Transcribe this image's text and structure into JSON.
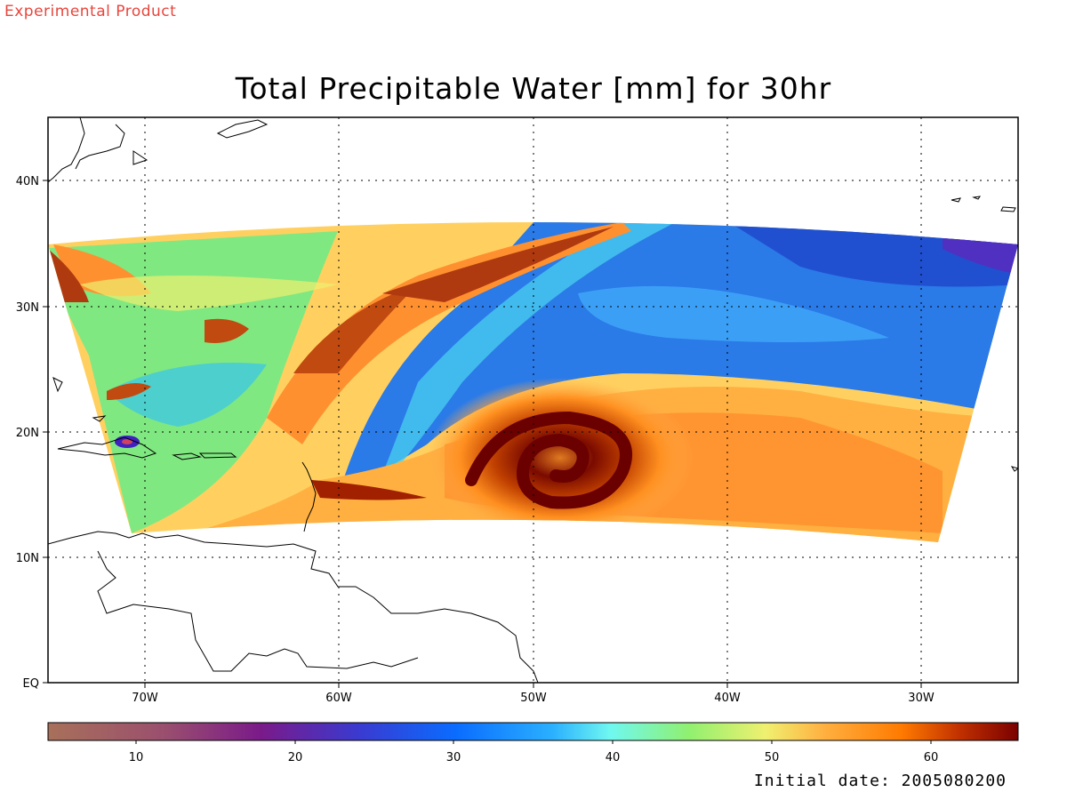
{
  "badge": "Experimental Product",
  "title": "Total Precipitable Water [mm] for 30hr",
  "footer": "Initial date: 2005080200",
  "map": {
    "lon_range": [
      -75,
      -25
    ],
    "lat_range": [
      0,
      45
    ],
    "lat_labels": [
      {
        "value": 0,
        "text": "EQ"
      },
      {
        "value": 10,
        "text": "10N"
      },
      {
        "value": 20,
        "text": "20N"
      },
      {
        "value": 30,
        "text": "30N"
      },
      {
        "value": 40,
        "text": "40N"
      }
    ],
    "lon_labels": [
      {
        "value": -70,
        "text": "70W"
      },
      {
        "value": -60,
        "text": "60W"
      },
      {
        "value": -50,
        "text": "50W"
      },
      {
        "value": -40,
        "text": "40W"
      },
      {
        "value": -30,
        "text": "30W"
      }
    ],
    "gridlines": "dotted",
    "storm_center": {
      "lon": -49,
      "lat": 18
    }
  },
  "colorbar": {
    "min": 5,
    "max": 65,
    "tick_labels": [
      "10",
      "20",
      "30",
      "40",
      "50",
      "60"
    ],
    "tick_values": [
      10,
      20,
      30,
      40,
      50,
      60
    ],
    "colors": [
      "#a8705a",
      "#9a4f6e",
      "#7a1a8a",
      "#3a3ad0",
      "#0a6cff",
      "#2ab0ff",
      "#70f8f0",
      "#90f070",
      "#f0f070",
      "#ffb040",
      "#ff7a00",
      "#c03000",
      "#7a0000"
    ]
  }
}
